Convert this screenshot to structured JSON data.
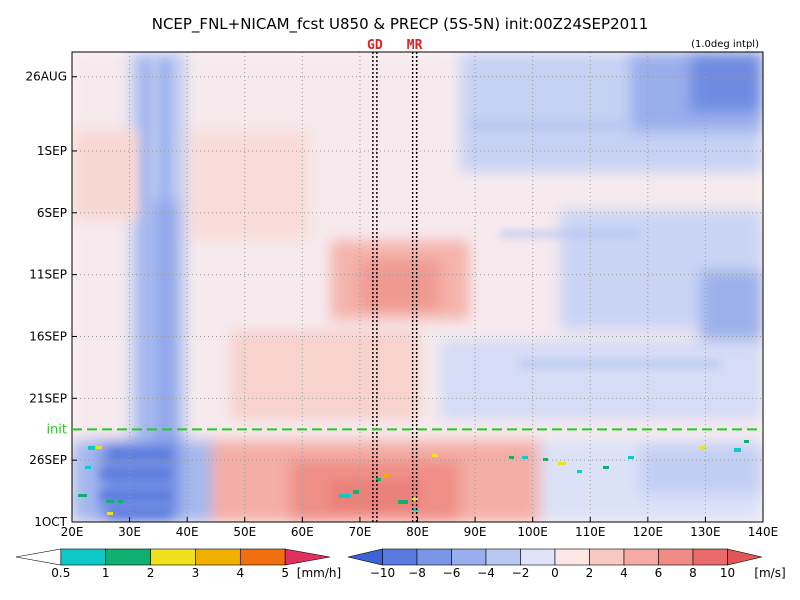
{
  "chart_data": {
    "type": "heatmap",
    "title": "NCEP_FNL+NICAM_fcst U850 & PRECP (5S-5N) init:00Z24SEP2011",
    "subtitle": "(1.0deg intpl)",
    "xlabel": "",
    "ylabel": "",
    "x_range": [
      "20E",
      "140E"
    ],
    "x_ticks": [
      "20E",
      "30E",
      "40E",
      "50E",
      "60E",
      "70E",
      "80E",
      "90E",
      "100E",
      "110E",
      "120E",
      "130E",
      "140E"
    ],
    "y_range": [
      "24AUG2011",
      "1OCT2011"
    ],
    "y_ticks": [
      "26AUG",
      "1SEP",
      "6SEP",
      "11SEP",
      "16SEP",
      "21SEP",
      "26SEP",
      "1OCT"
    ],
    "y_direction": "time increases downward",
    "grid": true,
    "init_line": {
      "label": "init",
      "date": "24SEP2011",
      "color": "#22cc22"
    },
    "station_lines": [
      {
        "label": "GD",
        "lon": 72.6
      },
      {
        "label": "MR",
        "lon": 79.5
      }
    ],
    "shading_field": {
      "name": "U850",
      "units": "[m/s]",
      "levels": [
        -10,
        -8,
        -6,
        -4,
        -2,
        0,
        2,
        4,
        6,
        8,
        10
      ],
      "colors": [
        "#3d62d8",
        "#5b7ae0",
        "#7a94e6",
        "#99aeec",
        "#b9c8f2",
        "#dde4fa",
        "#fde6e3",
        "#f9c8c2",
        "#f5aba3",
        "#ef8a84",
        "#e86a6a",
        "#e05555"
      ]
    },
    "precip_field": {
      "name": "PRECP",
      "units": "[mm/h]",
      "levels": [
        0.5,
        1,
        2,
        3,
        4,
        5
      ],
      "colors": [
        "#ffffff",
        "#10c8c8",
        "#10b070",
        "#f0e020",
        "#f0b000",
        "#f07010",
        "#e03060"
      ]
    },
    "features": [
      {
        "desc": "easterly (negative U) band",
        "lon_range": [
          32,
          40
        ],
        "dates": "26AUG-1OCT"
      },
      {
        "desc": "westerly (positive U) maximum",
        "lon_range": [
          68,
          82
        ],
        "dates": "9SEP-14SEP",
        "approx_value": 6
      },
      {
        "desc": "strong easterly region",
        "lon_range": [
          130,
          140
        ],
        "dates": "24AUG-28AUG",
        "approx_value": -8
      },
      {
        "desc": "westerly band after init",
        "lon_range": [
          55,
          95
        ],
        "dates": "25SEP-1OCT",
        "approx_value": 6
      }
    ]
  }
}
